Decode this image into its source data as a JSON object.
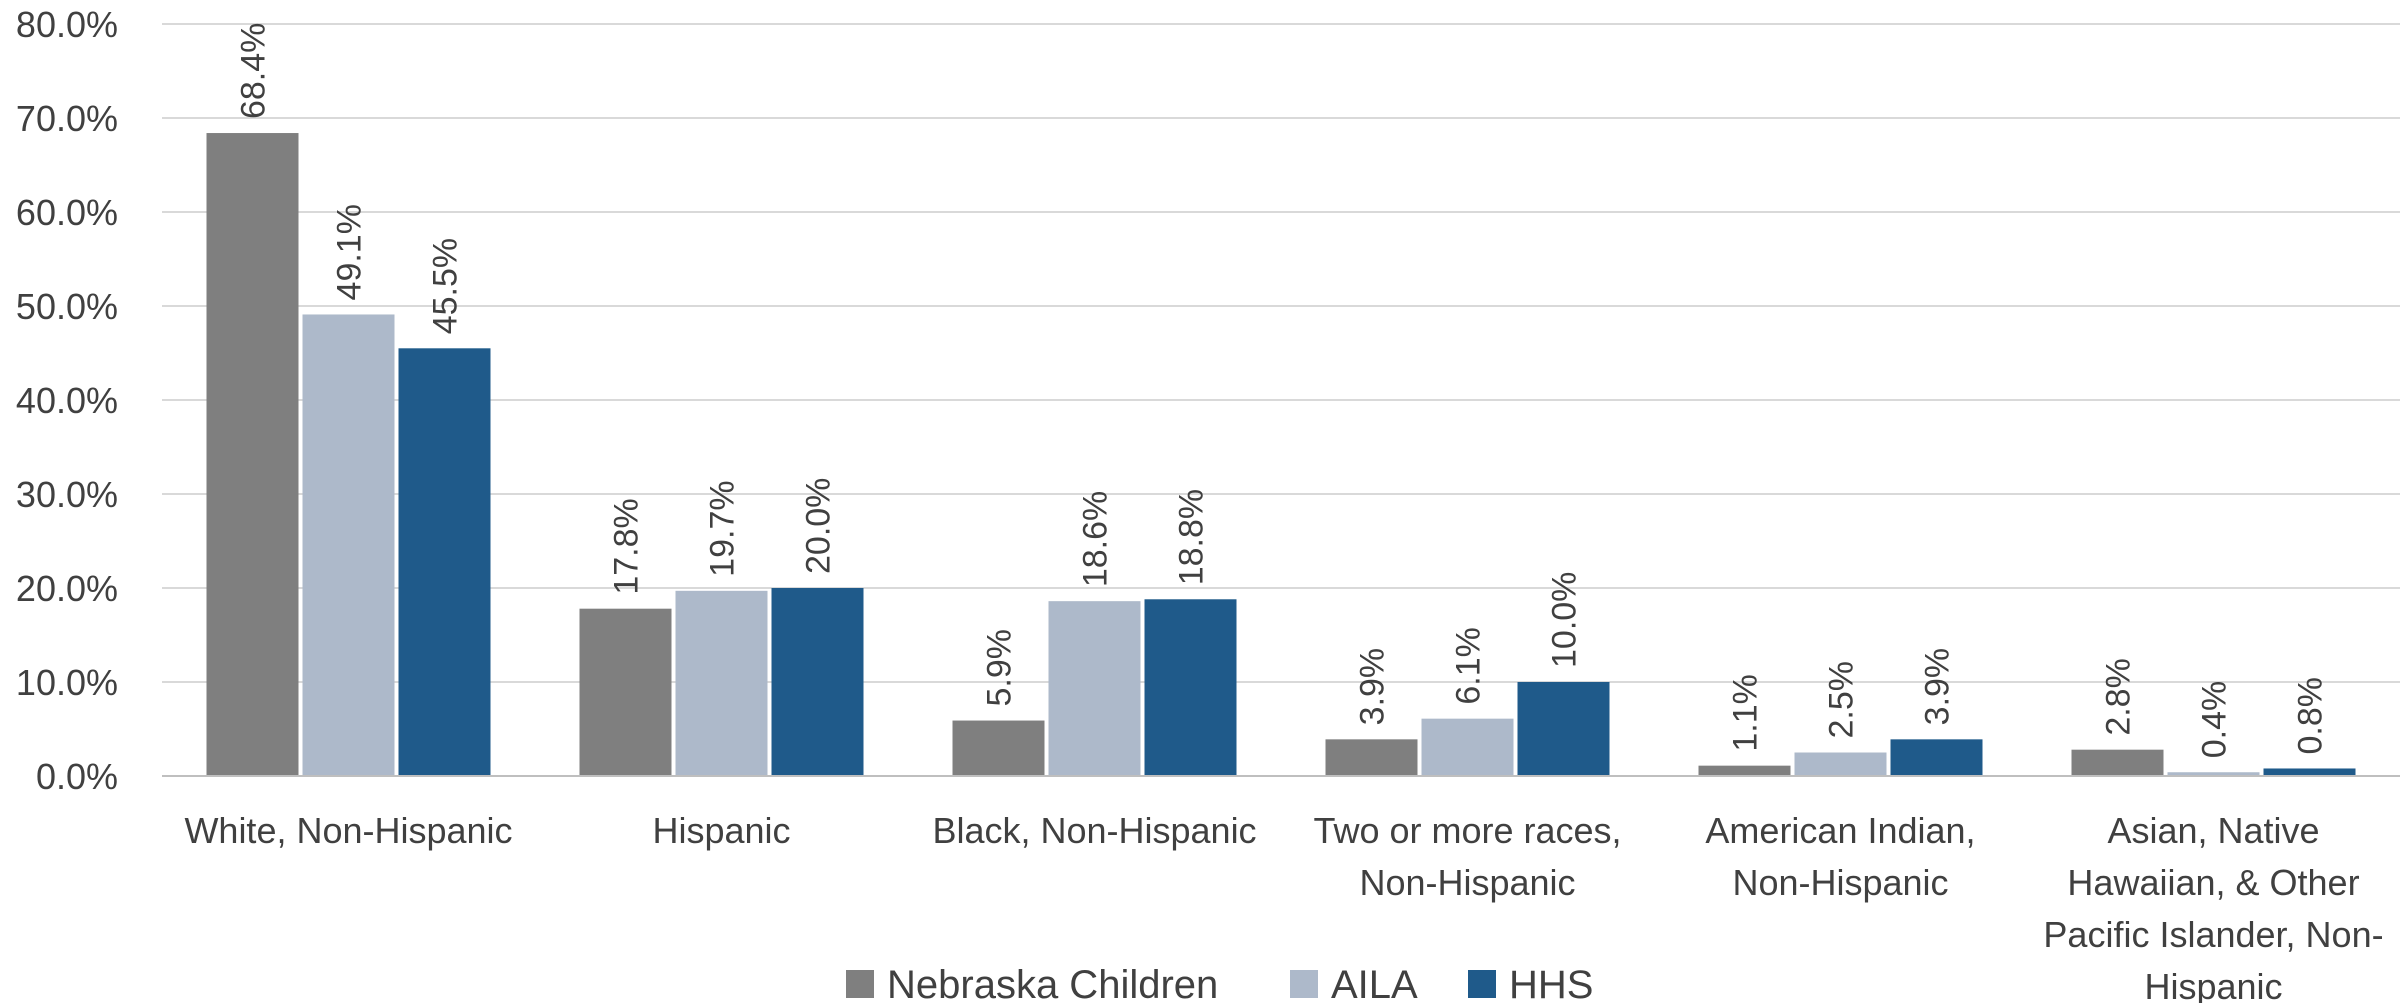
{
  "chart_data": {
    "type": "bar",
    "categories": [
      [
        "White, Non-Hispanic"
      ],
      [
        "Hispanic"
      ],
      [
        "Black, Non-Hispanic"
      ],
      [
        "Two or more races,",
        "Non-Hispanic"
      ],
      [
        "American Indian,",
        "Non-Hispanic"
      ],
      [
        "Asian, Native",
        "Hawaiian, & Other",
        "Pacific Islander, Non-",
        "Hispanic"
      ]
    ],
    "series": [
      {
        "name": "Nebraska Children",
        "color": "#7f7f7f",
        "values": [
          68.4,
          17.8,
          5.9,
          3.9,
          1.1,
          2.8
        ],
        "labels": [
          "68.4%",
          "17.8%",
          "5.9%",
          "3.9%",
          "1.1%",
          "2.8%"
        ]
      },
      {
        "name": "AILA",
        "color": "#adb9ca",
        "values": [
          49.1,
          19.7,
          18.6,
          6.1,
          2.5,
          0.4
        ],
        "labels": [
          "49.1%",
          "19.7%",
          "18.6%",
          "6.1%",
          "2.5%",
          "0.4%"
        ]
      },
      {
        "name": "HHS",
        "color": "#1f5a8a",
        "values": [
          45.5,
          20.0,
          18.8,
          10.0,
          3.9,
          0.8
        ],
        "labels": [
          "45.5%",
          "20.0%",
          "18.8%",
          "10.0%",
          "3.9%",
          "0.8%"
        ]
      }
    ],
    "ylim": [
      0,
      80
    ],
    "yticks": [
      0,
      10,
      20,
      30,
      40,
      50,
      60,
      70,
      80
    ],
    "ytick_labels": [
      "0.0%",
      "10.0%",
      "20.0%",
      "30.0%",
      "40.0%",
      "50.0%",
      "60.0%",
      "70.0%",
      "80.0%"
    ],
    "grid": true,
    "legend_position": "bottom",
    "data_labels": true
  }
}
